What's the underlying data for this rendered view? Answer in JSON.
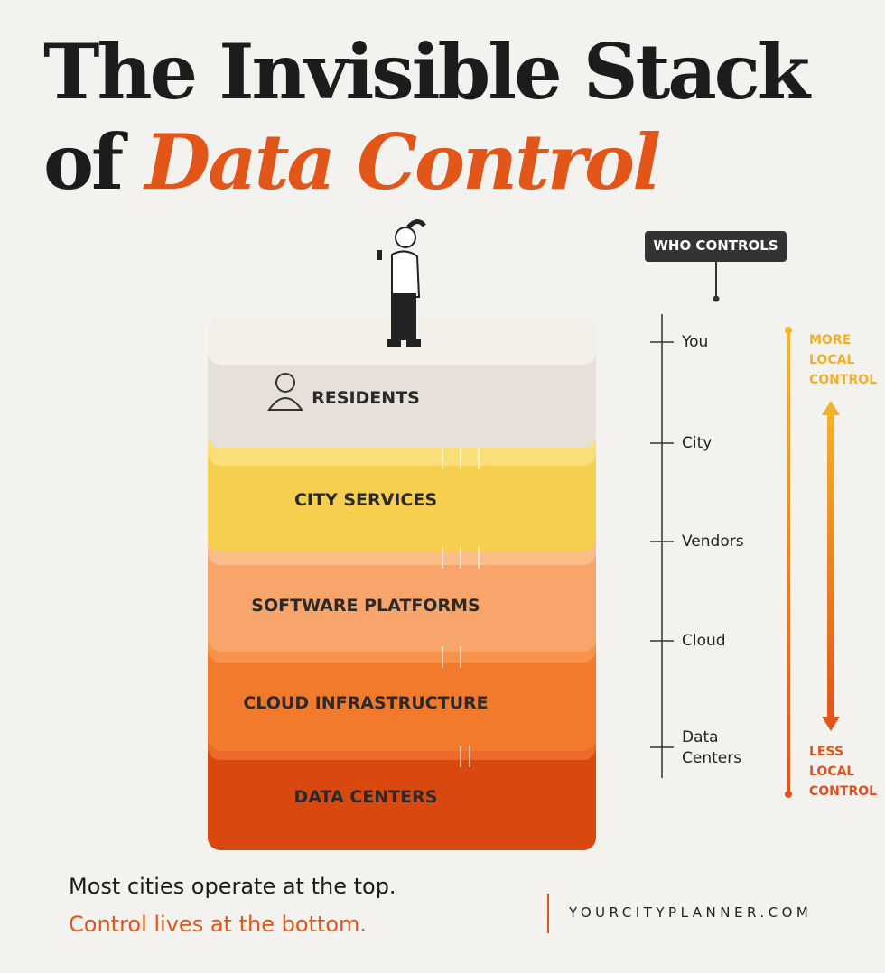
{
  "header": {
    "title_line1": "The Invisible Stack",
    "title_prefix": "of",
    "title_highlight": "Data Control"
  },
  "layers": [
    "RESIDENTS",
    "CITY SERVICES",
    "SOFTWARE PLATFORMS",
    "CLOUD INFRASTRUCTURE",
    "DATA CENTERS"
  ],
  "controls": {
    "heading": "WHO CONTROLS",
    "items": [
      "You",
      "City",
      "Vendors",
      "Cloud",
      "Data Centers"
    ]
  },
  "scale": {
    "top_label": "MORE LOCAL CONTROL",
    "bottom_label": "LESS LOCAL CONTROL"
  },
  "footer": {
    "line1": "Most cities operate at the top.",
    "line2": "Control lives at the bottom.",
    "url": "YOURCITYPLANNER.COM"
  }
}
